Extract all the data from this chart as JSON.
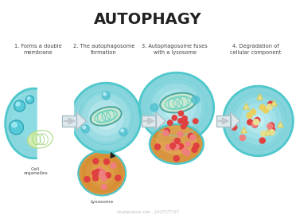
{
  "title": "AUTOPHAGY",
  "title_fontsize": 14,
  "title_fontweight": "bold",
  "background_color": "#ffffff",
  "step_labels": [
    "1. Forms a double\nmembrane",
    "2. The autophagosome\nformation",
    "3. Autophagosome fuses\nwith a lysosome",
    "4. Degradation of\ncellular component"
  ],
  "cell_organelles_label": "Cell\norganelles",
  "lysosome_label": "Lysosome",
  "watermark": "shutterstock.com · 2447577747",
  "teal_outer": "#4ec8cc",
  "teal_mid": "#5bbfc8",
  "teal_dark": "#2a9aaa",
  "teal_fill": "#b8eaf0",
  "teal_fill_deep": "#78d0d8",
  "teal_cell_bg": "#a0d8e0",
  "orange_lyso": "#d4882a",
  "orange_light": "#e8b060",
  "orange_fill3": "#c87820",
  "red_dot": "#e04040",
  "pink_dot": "#f08080",
  "yellow_dot": "#e8d060",
  "cream_dot": "#e8e090",
  "arrow_color": "#909090",
  "text_color": "#444444",
  "mito_outer": "#50a8a0",
  "mito_inner_fill": "#c8e8d0",
  "mito_ridge": "#40c8b8",
  "label_fontsize": 4.8,
  "small_label_fontsize": 4.2
}
